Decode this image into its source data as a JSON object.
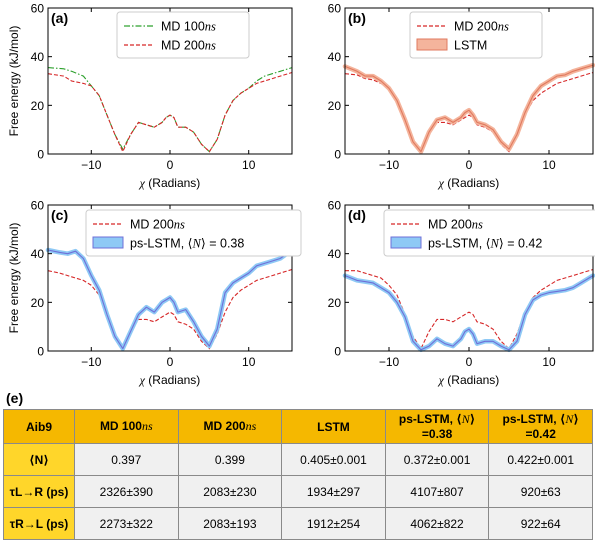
{
  "chart_data": [
    {
      "type": "line",
      "panel": "(a)",
      "xlabel": "χ (Radians)",
      "ylabel": "Free energy (kJ/mol)",
      "xlim": [
        -15.5,
        15.5
      ],
      "ylim": [
        0,
        60
      ],
      "xticks": [
        -10,
        0,
        10
      ],
      "yticks": [
        0,
        20,
        40,
        60
      ],
      "xtick_labels": [
        "−10",
        "0",
        "10"
      ],
      "ytick_labels": [
        "0",
        "20",
        "40",
        "60"
      ],
      "legend_position": "top-center",
      "x": [
        -15.5,
        -13.5,
        -12.5,
        -11,
        -10,
        -9,
        -8,
        -7,
        -6,
        -5,
        -4,
        -3,
        -2,
        -1,
        -0.5,
        0,
        0.5,
        1,
        2,
        3,
        4,
        5,
        6,
        7,
        8,
        9,
        10,
        11,
        12,
        13,
        14,
        15.5
      ],
      "series": [
        {
          "name": "MD 100ns",
          "style": "dash-dot",
          "color": "#2ca02c",
          "values": [
            35.5,
            35,
            34,
            32,
            28,
            24,
            16,
            8,
            2,
            8,
            13,
            12,
            11,
            13,
            15,
            16,
            15,
            11,
            11,
            9,
            4,
            1,
            6,
            16,
            22,
            25,
            27,
            30,
            32,
            33,
            34,
            35.5
          ]
        },
        {
          "name": "MD 200ns",
          "style": "dashed",
          "color": "#d62728",
          "values": [
            33,
            32,
            30,
            29,
            28,
            24,
            16,
            8,
            1,
            8,
            13,
            12,
            11,
            13,
            15,
            16,
            15,
            11,
            11,
            9,
            4,
            1,
            6,
            16,
            22,
            25,
            27,
            29,
            30,
            31,
            32,
            33.5
          ]
        }
      ]
    },
    {
      "type": "line",
      "panel": "(b)",
      "xlabel": "χ (Radians)",
      "ylabel": "",
      "xlim": [
        -15.5,
        15.5
      ],
      "ylim": [
        0,
        60
      ],
      "xticks": [
        -10,
        0,
        10
      ],
      "yticks": [
        0,
        20,
        40,
        60
      ],
      "xtick_labels": [
        "−10",
        "0",
        "10"
      ],
      "ytick_labels": [
        "0",
        "20",
        "40",
        "60"
      ],
      "legend_position": "top-center",
      "x": [
        -15.5,
        -14,
        -13,
        -12,
        -11,
        -10,
        -9,
        -8,
        -7,
        -6,
        -5,
        -4,
        -3,
        -2,
        -1,
        -0.5,
        0,
        0.5,
        1,
        2,
        3,
        4,
        5,
        6,
        7,
        8,
        9,
        10,
        11,
        12,
        13,
        14,
        15.5
      ],
      "series": [
        {
          "name": "MD 200ns",
          "style": "dashed",
          "color": "#d62728",
          "values": [
            33,
            32.5,
            31,
            30.5,
            29,
            27,
            23,
            15,
            6,
            1,
            8,
            13,
            13,
            12,
            14,
            15,
            16,
            15,
            12,
            11,
            9,
            4,
            1,
            7,
            16,
            22,
            25,
            27,
            29,
            30,
            31,
            32,
            33.5
          ]
        },
        {
          "name": "LSTM",
          "style": "band",
          "color": "#e07a5f",
          "fill": "#f4b49c",
          "values": [
            36,
            34,
            32,
            32,
            30,
            27,
            22,
            14,
            5,
            1,
            9,
            14,
            15,
            13,
            15,
            17,
            18,
            16,
            13,
            12,
            10,
            5,
            2,
            8,
            17,
            24,
            28,
            30,
            32,
            32.5,
            34,
            35,
            36.5
          ]
        }
      ]
    },
    {
      "type": "line",
      "panel": "(c)",
      "xlabel": "χ (Radians)",
      "ylabel": "Free energy (kJ/mol)",
      "xlim": [
        -15.5,
        15.5
      ],
      "ylim": [
        0,
        60
      ],
      "xticks": [
        -10,
        0,
        10
      ],
      "yticks": [
        0,
        20,
        40,
        60
      ],
      "xtick_labels": [
        "−10",
        "0",
        "10"
      ],
      "ytick_labels": [
        "0",
        "20",
        "40",
        "60"
      ],
      "legend_position": "top-center",
      "x": [
        -15.5,
        -14,
        -13,
        -12,
        -11,
        -10,
        -9,
        -8,
        -7,
        -6,
        -5,
        -4,
        -3,
        -2,
        -1,
        -0.5,
        0,
        0.5,
        1,
        2,
        3,
        4,
        5,
        6,
        7,
        8,
        9,
        10,
        11,
        12,
        13,
        14,
        15.5
      ],
      "series": [
        {
          "name": "MD 200ns",
          "style": "dashed",
          "color": "#d62728",
          "values": [
            33,
            32,
            31,
            30,
            29,
            27,
            23,
            15,
            6,
            1,
            8,
            13,
            13,
            12,
            14,
            15,
            16,
            15,
            12,
            11,
            9,
            4,
            1,
            7,
            16,
            22,
            25,
            27,
            29,
            30,
            31,
            32,
            33.5
          ]
        },
        {
          "name": "ps-LSTM, ⟨N⟩ = 0.38",
          "style": "band",
          "color": "#6f6fd8",
          "fill": "#8ec9f5",
          "values": [
            41.5,
            40.5,
            40,
            41,
            38,
            31,
            25,
            15,
            6,
            1,
            8,
            15,
            18,
            16,
            20,
            21,
            22,
            20,
            16,
            17,
            12,
            6,
            2,
            9,
            24,
            28,
            30,
            32,
            35,
            36,
            37,
            38,
            41.5
          ]
        }
      ]
    },
    {
      "type": "line",
      "panel": "(d)",
      "xlabel": "χ (Radians)",
      "ylabel": "",
      "xlim": [
        -15.5,
        15.5
      ],
      "ylim": [
        0,
        60
      ],
      "xticks": [
        -10,
        0,
        10
      ],
      "yticks": [
        0,
        20,
        40,
        60
      ],
      "xtick_labels": [
        "−10",
        "0",
        "10"
      ],
      "ytick_labels": [
        "0",
        "20",
        "40",
        "60"
      ],
      "legend_position": "top-center",
      "x": [
        -15.5,
        -14,
        -13,
        -12,
        -11,
        -10,
        -9,
        -8,
        -7,
        -6,
        -5,
        -4,
        -3,
        -2,
        -1,
        -0.5,
        0,
        0.5,
        1,
        2,
        3,
        4,
        5,
        6,
        7,
        8,
        9,
        10,
        11,
        12,
        13,
        14,
        15.5
      ],
      "series": [
        {
          "name": "MD 200ns",
          "style": "dashed",
          "color": "#d62728",
          "values": [
            33,
            33,
            32,
            31,
            30,
            27,
            23,
            15,
            6,
            1,
            8,
            13,
            13,
            12,
            14,
            15,
            16,
            15,
            12,
            11,
            9,
            4,
            1,
            7,
            16,
            22,
            25,
            27,
            29,
            30,
            31,
            32,
            33.5
          ]
        },
        {
          "name": "ps-LSTM, ⟨N⟩ = 0.42",
          "style": "band",
          "color": "#6f6fd8",
          "fill": "#8ec9f5",
          "values": [
            31,
            29,
            28.5,
            28,
            26,
            24,
            20,
            14,
            4,
            0.5,
            2,
            5,
            3,
            2,
            5,
            8,
            9,
            7,
            3,
            4,
            4,
            2,
            0.5,
            4,
            15,
            21,
            23,
            24,
            24.5,
            25,
            26,
            28,
            31
          ]
        }
      ]
    }
  ],
  "table": {
    "label": "(e)",
    "columns": [
      {
        "main": "Aib9",
        "italic": ""
      },
      {
        "main": "MD 100",
        "italic": "ns"
      },
      {
        "main": "MD 200",
        "italic": "ns"
      },
      {
        "main": "LSTM",
        "italic": ""
      },
      {
        "main": "ps-LSTM, ⟨",
        "italic": "N",
        "tail": "⟩=0.38"
      },
      {
        "main": "ps-LSTM, ⟨",
        "italic": "N",
        "tail": "⟩=0.42"
      }
    ],
    "rows": [
      {
        "head": "⟨N⟩",
        "cells": [
          "0.397",
          "0.399",
          "0.405±0.001",
          "0.372±0.001",
          "0.422±0.001"
        ]
      },
      {
        "head": "τL→R (ps)",
        "cells": [
          "2326±390",
          "2083±230",
          "1934±297",
          "4107±807",
          "920±63"
        ]
      },
      {
        "head": "τR→L (ps)",
        "cells": [
          "2273±322",
          "2083±193",
          "1912±254",
          "4062±822",
          "922±64"
        ]
      }
    ]
  },
  "colors": {
    "table_header": "#f5b800",
    "table_row_head": "#ffd62a",
    "table_cell": "#f0f0f0"
  }
}
